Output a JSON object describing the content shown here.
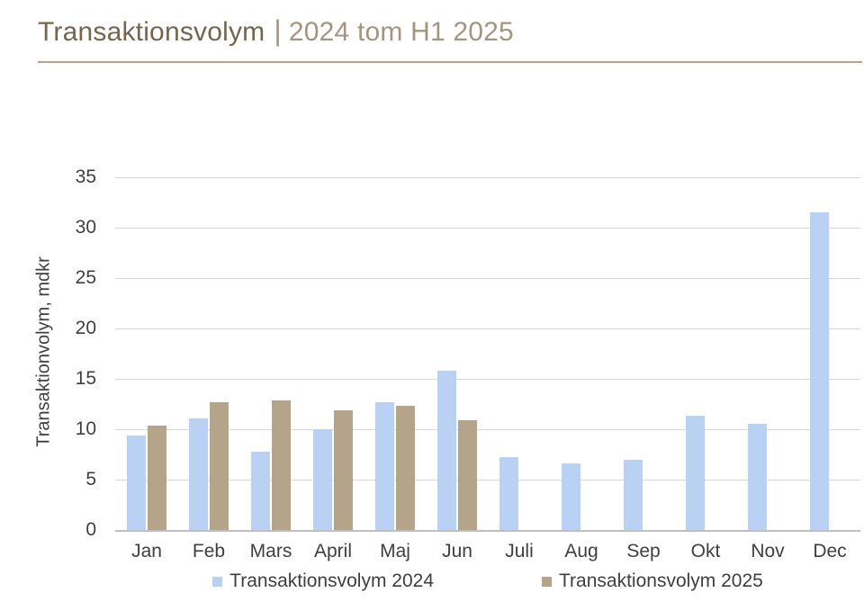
{
  "header": {
    "title_main": "Transaktionsvolym",
    "title_separator": "|",
    "title_sub": "2024 tom H1 2025"
  },
  "colors": {
    "series_2024": "#b9d1f2",
    "series_2025": "#b3a48a",
    "title_main": "#75654e",
    "title_sub": "#a59480",
    "title_rule": "#b3a58c",
    "axis_text": "#3f3f3f",
    "gridline": "#d9d9d9",
    "baseline": "#bfbfbf"
  },
  "chart_data": {
    "type": "bar",
    "title": "Transaktionsvolym | 2024 tom H1 2025",
    "categories": [
      "Jan",
      "Feb",
      "Mars",
      "April",
      "Maj",
      "Jun",
      "Juli",
      "Aug",
      "Sep",
      "Okt",
      "Nov",
      "Dec"
    ],
    "series": [
      {
        "name": "Transaktionsvolym 2024",
        "color_key": "series_2024",
        "values": [
          9.4,
          11.1,
          7.8,
          10.0,
          12.7,
          15.8,
          7.2,
          6.6,
          7.0,
          11.3,
          10.5,
          31.5
        ]
      },
      {
        "name": "Transaktionsvolym 2025",
        "color_key": "series_2025",
        "values": [
          10.4,
          12.7,
          12.9,
          11.9,
          12.3,
          10.9,
          null,
          null,
          null,
          null,
          null,
          null
        ]
      }
    ],
    "xlabel": "",
    "ylabel": "Transaktionvolym, mdkr",
    "ylim": [
      0,
      35
    ],
    "ytick_step": 5,
    "grid": true,
    "legend_position": "bottom"
  }
}
